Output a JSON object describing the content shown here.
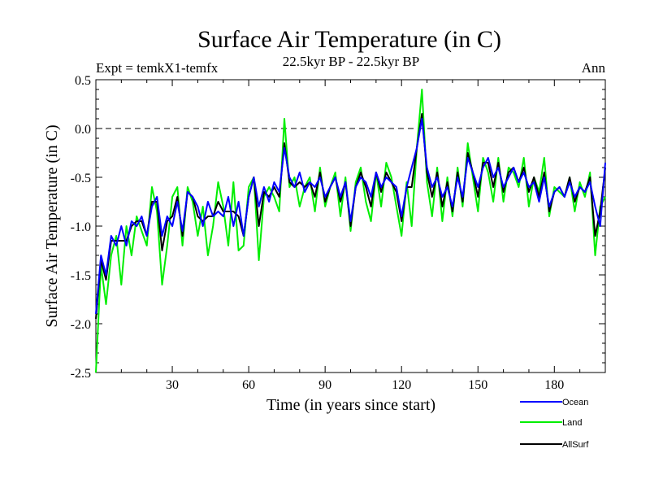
{
  "colors": {
    "ocean": "#0000ff",
    "land": "#00ee00",
    "allsurf": "#000000",
    "zero_line": "#000000"
  },
  "chart_data": {
    "type": "line",
    "title": "Surface Air Temperature (in C)",
    "subtitle": "22.5kyr BP - 22.5kyr BP",
    "left_label": "Expt = temkX1-temfx",
    "right_label": "Ann",
    "xlabel": "Time (in years since start)",
    "ylabel": "Surface Air Temperature (in C)",
    "xlim": [
      0,
      200
    ],
    "ylim": [
      -2.5,
      0.5
    ],
    "x_ticks": [
      30,
      60,
      90,
      120,
      150,
      180
    ],
    "x_tick_labels": [
      "30",
      "60",
      "90",
      "120",
      "150",
      "180"
    ],
    "y_ticks": [
      -2.5,
      -2.0,
      -1.5,
      -1.0,
      -0.5,
      0.0,
      0.5
    ],
    "y_tick_labels": [
      "-2.5",
      "-2.0",
      "-1.5",
      "-1.0",
      "-0.5",
      "0.0",
      "0.5"
    ],
    "reference_line": {
      "y": 0.0,
      "style": "dashed"
    },
    "legend_position": "bottom-right, outside plot",
    "x": [
      0,
      2,
      4,
      6,
      8,
      10,
      12,
      14,
      16,
      18,
      20,
      22,
      24,
      26,
      28,
      30,
      32,
      34,
      36,
      38,
      40,
      42,
      44,
      46,
      48,
      50,
      52,
      54,
      56,
      58,
      60,
      62,
      64,
      66,
      68,
      70,
      72,
      74,
      76,
      78,
      80,
      82,
      84,
      86,
      88,
      90,
      92,
      94,
      96,
      98,
      100,
      102,
      104,
      106,
      108,
      110,
      112,
      114,
      116,
      118,
      120,
      122,
      124,
      126,
      128,
      130,
      132,
      134,
      136,
      138,
      140,
      142,
      144,
      146,
      148,
      150,
      152,
      154,
      156,
      158,
      160,
      162,
      164,
      166,
      168,
      170,
      172,
      174,
      176,
      178,
      180,
      182,
      184,
      186,
      188,
      190,
      192,
      194,
      196,
      198,
      200
    ],
    "series": [
      {
        "name": "Ocean",
        "values": [
          -1.9,
          -1.3,
          -1.5,
          -1.1,
          -1.2,
          -1.0,
          -1.2,
          -0.95,
          -1.0,
          -0.9,
          -1.1,
          -0.8,
          -0.7,
          -1.1,
          -0.9,
          -1.0,
          -0.75,
          -1.05,
          -0.65,
          -0.7,
          -0.8,
          -1.0,
          -0.75,
          -0.9,
          -0.85,
          -0.9,
          -0.7,
          -1.0,
          -0.75,
          -1.1,
          -0.7,
          -0.5,
          -0.8,
          -0.6,
          -0.75,
          -0.55,
          -0.65,
          -0.2,
          -0.5,
          -0.6,
          -0.45,
          -0.65,
          -0.55,
          -0.6,
          -0.5,
          -0.7,
          -0.6,
          -0.5,
          -0.7,
          -0.55,
          -0.95,
          -0.6,
          -0.5,
          -0.55,
          -0.7,
          -0.45,
          -0.6,
          -0.5,
          -0.55,
          -0.6,
          -0.9,
          -0.6,
          -0.4,
          -0.2,
          0.1,
          -0.4,
          -0.6,
          -0.5,
          -0.7,
          -0.6,
          -0.8,
          -0.5,
          -0.7,
          -0.3,
          -0.45,
          -0.6,
          -0.4,
          -0.3,
          -0.5,
          -0.4,
          -0.6,
          -0.5,
          -0.4,
          -0.55,
          -0.45,
          -0.6,
          -0.55,
          -0.75,
          -0.5,
          -0.8,
          -0.65,
          -0.6,
          -0.7,
          -0.55,
          -0.7,
          -0.6,
          -0.65,
          -0.55,
          -0.8,
          -1.0,
          -0.35
        ]
      },
      {
        "name": "Land",
        "values": [
          -2.5,
          -1.4,
          -1.8,
          -1.3,
          -1.1,
          -1.6,
          -1.0,
          -1.3,
          -0.9,
          -1.05,
          -1.2,
          -0.6,
          -0.85,
          -1.6,
          -1.2,
          -0.7,
          -0.6,
          -1.2,
          -0.6,
          -0.75,
          -1.1,
          -0.8,
          -1.3,
          -1.0,
          -0.55,
          -0.8,
          -1.2,
          -0.55,
          -1.25,
          -1.2,
          -0.6,
          -0.5,
          -1.35,
          -0.7,
          -0.6,
          -0.7,
          -0.85,
          0.1,
          -0.6,
          -0.5,
          -0.8,
          -0.6,
          -0.5,
          -0.85,
          -0.4,
          -0.8,
          -0.6,
          -0.45,
          -0.9,
          -0.5,
          -1.05,
          -0.55,
          -0.4,
          -0.75,
          -0.95,
          -0.45,
          -0.8,
          -0.35,
          -0.5,
          -0.8,
          -1.1,
          -0.55,
          -1.0,
          -0.2,
          0.4,
          -0.55,
          -0.9,
          -0.4,
          -0.95,
          -0.5,
          -0.9,
          -0.4,
          -0.8,
          -0.15,
          -0.5,
          -0.85,
          -0.3,
          -0.45,
          -0.75,
          -0.3,
          -0.75,
          -0.4,
          -0.45,
          -0.6,
          -0.3,
          -0.8,
          -0.5,
          -0.65,
          -0.3,
          -0.9,
          -0.6,
          -0.65,
          -0.7,
          -0.5,
          -0.85,
          -0.55,
          -0.7,
          -0.45,
          -1.3,
          -0.8,
          -0.7
        ]
      },
      {
        "name": "AllSurf",
        "values": [
          -1.95,
          -1.35,
          -1.55,
          -1.15,
          -1.15,
          -1.15,
          -1.15,
          -1.0,
          -0.95,
          -0.95,
          -1.1,
          -0.75,
          -0.75,
          -1.25,
          -0.95,
          -0.9,
          -0.7,
          -1.1,
          -0.65,
          -0.7,
          -0.9,
          -0.95,
          -0.9,
          -0.9,
          -0.75,
          -0.85,
          -0.85,
          -0.85,
          -0.9,
          -1.1,
          -0.7,
          -0.5,
          -1.0,
          -0.65,
          -0.7,
          -0.6,
          -0.7,
          -0.15,
          -0.55,
          -0.6,
          -0.55,
          -0.6,
          -0.55,
          -0.7,
          -0.45,
          -0.75,
          -0.6,
          -0.5,
          -0.75,
          -0.55,
          -1.0,
          -0.6,
          -0.45,
          -0.6,
          -0.8,
          -0.45,
          -0.65,
          -0.45,
          -0.55,
          -0.65,
          -0.95,
          -0.6,
          -0.6,
          -0.2,
          0.15,
          -0.45,
          -0.7,
          -0.45,
          -0.8,
          -0.55,
          -0.85,
          -0.45,
          -0.75,
          -0.25,
          -0.45,
          -0.7,
          -0.35,
          -0.35,
          -0.6,
          -0.35,
          -0.65,
          -0.45,
          -0.4,
          -0.55,
          -0.4,
          -0.65,
          -0.5,
          -0.7,
          -0.45,
          -0.85,
          -0.65,
          -0.6,
          -0.7,
          -0.5,
          -0.75,
          -0.6,
          -0.65,
          -0.5,
          -1.1,
          -0.85,
          -0.4
        ]
      }
    ]
  }
}
